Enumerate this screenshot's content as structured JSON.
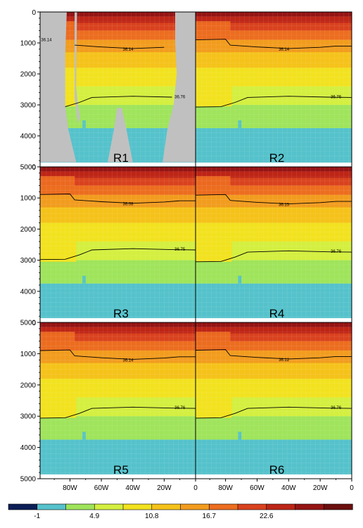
{
  "chart_data": {
    "type": "heatmap",
    "title": "",
    "xlabel": "",
    "ylabel": "",
    "ylim": [
      5000,
      0
    ],
    "yticks": [
      "0",
      "1000",
      "2000",
      "3000",
      "4000",
      "5000"
    ],
    "xticks": [
      "80W",
      "60W",
      "40W",
      "20W",
      "0"
    ],
    "x_ticks_lon": [
      80,
      60,
      40,
      20,
      0
    ],
    "xlim_lon": [
      99,
      0
    ],
    "colorbar": {
      "levels": [
        "-1",
        "1.9",
        "4.9",
        "7.8",
        "10.8",
        "13.7",
        "16.7",
        "19.6",
        "22.6",
        "25.5"
      ],
      "colors": [
        "#0c1f57",
        "#55c2cb",
        "#9fe45b",
        "#d4ef3f",
        "#f2e21f",
        "#f5c21a",
        "#f29c1e",
        "#ec6d1f",
        "#d9421e",
        "#bd2516",
        "#951414",
        "#6b0e0e"
      ]
    },
    "panels": [
      {
        "name": "R1",
        "contours": [
          {
            "label": "36.14",
            "depth": 1120
          },
          {
            "label": "36.14",
            "depth": 1200
          },
          {
            "label": "36.76",
            "depth": 2740
          }
        ]
      },
      {
        "name": "R2",
        "contours": [
          {
            "label": "36.14",
            "depth": 1200
          },
          {
            "label": "36.76",
            "depth": 2740
          }
        ]
      },
      {
        "name": "R3",
        "contours": [
          {
            "label": "36.08",
            "depth": 1190
          },
          {
            "label": "36.75",
            "depth": 2650
          }
        ]
      },
      {
        "name": "R4",
        "contours": [
          {
            "label": "36.15",
            "depth": 1210
          },
          {
            "label": "36.76",
            "depth": 2720
          }
        ]
      },
      {
        "name": "R5",
        "contours": [
          {
            "label": "36.14",
            "depth": 1200
          },
          {
            "label": "36.76",
            "depth": 2730
          }
        ]
      },
      {
        "name": "R6",
        "contours": [
          {
            "label": "36.12",
            "depth": 1190
          },
          {
            "label": "36.76",
            "depth": 2730
          }
        ]
      }
    ],
    "bands": [
      {
        "d0": 0,
        "d1": 150,
        "v": 25.5
      },
      {
        "d0": 150,
        "d1": 350,
        "v": 22.6
      },
      {
        "d0": 350,
        "d1": 600,
        "v": 19.6
      },
      {
        "d0": 600,
        "d1": 900,
        "v": 16.7
      },
      {
        "d0": 900,
        "d1": 1300,
        "v": 13.7
      },
      {
        "d0": 1300,
        "d1": 1800,
        "v": 10.8
      },
      {
        "d0": 1800,
        "d1": 2400,
        "v": 7.8
      },
      {
        "d0": 2400,
        "d1": 3000,
        "v": 4.9
      },
      {
        "d0": 3000,
        "d1": 3400,
        "v": 3.0
      },
      {
        "d0": 3400,
        "d1": 3750,
        "v": 1.9
      },
      {
        "d0": 3750,
        "d1": 4850,
        "v": 0.5
      }
    ]
  }
}
